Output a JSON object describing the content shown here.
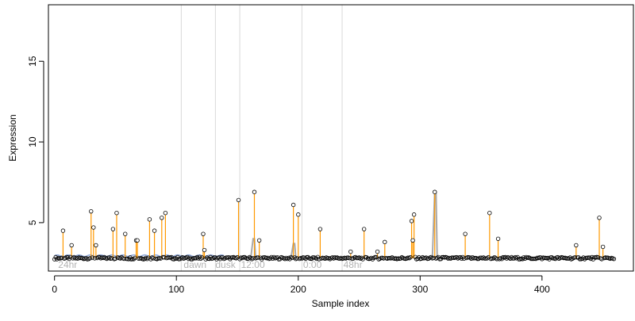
{
  "chart_data": {
    "type": "scatter",
    "xlabel": "Sample index",
    "ylabel": "Expression",
    "xlim": [
      -5,
      475
    ],
    "ylim": [
      2,
      18.5
    ],
    "x_ticks": [
      0,
      100,
      200,
      300,
      400
    ],
    "y_ticks": [
      5,
      10,
      15
    ],
    "grid": false,
    "baseline": 2.8,
    "vertical_lines": [
      104,
      132,
      152,
      203,
      236
    ],
    "region_labels": [
      {
        "x": 3,
        "text": "24hr"
      },
      {
        "x": 106,
        "text": "dawn"
      },
      {
        "x": 132,
        "text": "dusk"
      },
      {
        "x": 153,
        "text": "12:00"
      },
      {
        "x": 204,
        "text": "0:00"
      },
      {
        "x": 237,
        "text": "48hr"
      }
    ],
    "n_points": 460,
    "highlighted_points": [
      {
        "x": 7,
        "y": 4.5
      },
      {
        "x": 14,
        "y": 3.6
      },
      {
        "x": 30,
        "y": 5.7
      },
      {
        "x": 32,
        "y": 4.7
      },
      {
        "x": 34,
        "y": 3.6
      },
      {
        "x": 48,
        "y": 4.6
      },
      {
        "x": 51,
        "y": 5.6
      },
      {
        "x": 58,
        "y": 4.3
      },
      {
        "x": 67,
        "y": 3.9
      },
      {
        "x": 68,
        "y": 3.9
      },
      {
        "x": 78,
        "y": 5.2
      },
      {
        "x": 82,
        "y": 4.5
      },
      {
        "x": 88,
        "y": 5.3
      },
      {
        "x": 91,
        "y": 5.6
      },
      {
        "x": 122,
        "y": 4.3
      },
      {
        "x": 123,
        "y": 3.3
      },
      {
        "x": 151,
        "y": 6.4
      },
      {
        "x": 164,
        "y": 6.9
      },
      {
        "x": 168,
        "y": 3.9
      },
      {
        "x": 196,
        "y": 6.1
      },
      {
        "x": 200,
        "y": 5.5
      },
      {
        "x": 218,
        "y": 4.6
      },
      {
        "x": 243,
        "y": 3.2
      },
      {
        "x": 254,
        "y": 4.6
      },
      {
        "x": 265,
        "y": 3.2
      },
      {
        "x": 271,
        "y": 3.8
      },
      {
        "x": 293,
        "y": 5.1
      },
      {
        "x": 294,
        "y": 3.9
      },
      {
        "x": 295,
        "y": 5.5
      },
      {
        "x": 312,
        "y": 6.9
      },
      {
        "x": 337,
        "y": 4.3
      },
      {
        "x": 357,
        "y": 5.6
      },
      {
        "x": 364,
        "y": 4.0
      },
      {
        "x": 428,
        "y": 3.6
      },
      {
        "x": 447,
        "y": 5.3
      },
      {
        "x": 450,
        "y": 3.5
      }
    ],
    "gray_peaks": [
      {
        "x": 163,
        "y": 4.0
      },
      {
        "x": 196,
        "y": 3.7
      },
      {
        "x": 312,
        "y": 6.9
      }
    ],
    "colors": {
      "stem": "#ff9900",
      "blue_line": "#8fa8d8",
      "gray_line": "#a9a9a9",
      "vline": "#d9d9d9",
      "label": "#b3b3b3",
      "point": "#000000"
    }
  }
}
